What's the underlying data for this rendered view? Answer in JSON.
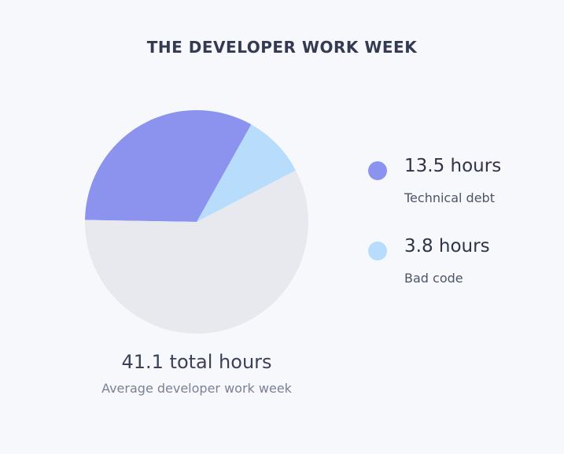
{
  "chart_data": {
    "type": "pie",
    "title": "THE DEVELOPER WORK WEEK",
    "total_value_label": "41.1 total hours",
    "total_caption": "Average developer work week",
    "slices": [
      {
        "key": "technical_debt",
        "value": 13.5,
        "value_label": "13.5 hours",
        "label": "Technical debt",
        "color": "#8b93ef"
      },
      {
        "key": "bad_code",
        "value": 3.8,
        "value_label": "3.8 hours",
        "label": "Bad code",
        "color": "#b8dcfb"
      },
      {
        "key": "other",
        "value": 23.8,
        "color": "#e8e9ee"
      }
    ],
    "total": 41.1,
    "legend_position": "right"
  }
}
